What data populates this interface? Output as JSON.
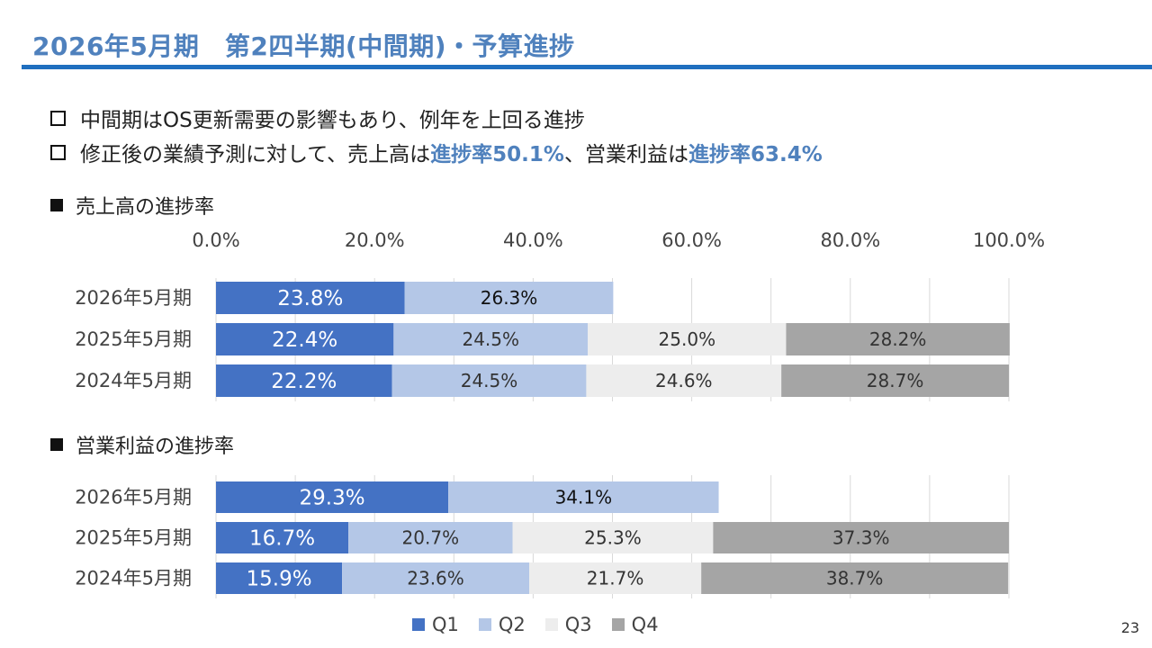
{
  "title": "2026年5月期　第2四半期(中間期)・予算進捗",
  "bullets": [
    {
      "text": "中間期はOS更新需要の影響もあり、例年を上回る進捗"
    },
    {
      "pre": "修正後の業績予測に対して、売上高は",
      "hl1": "進捗率50.1%",
      "mid": "、営業利益は",
      "hl2": "進捗率63.4%"
    }
  ],
  "page_number": "23",
  "colors": {
    "title": "#4f81bd",
    "rule": "#1f6fbf",
    "Q1": "#4472c4",
    "Q2": "#b4c7e7",
    "Q3": "#ededed",
    "Q4": "#a5a5a5"
  },
  "legend": [
    "Q1",
    "Q2",
    "Q3",
    "Q4"
  ],
  "chart_data": [
    {
      "type": "bar",
      "orientation": "horizontal",
      "stacked": true,
      "title": "売上高の進捗率",
      "axis_ticks": [
        "0.0%",
        "20.0%",
        "40.0%",
        "60.0%",
        "80.0%",
        "100.0%"
      ],
      "xlim": [
        0,
        100
      ],
      "categories": [
        "2026年5月期",
        "2025年5月期",
        "2024年5月期"
      ],
      "series": [
        {
          "name": "Q1",
          "values": [
            23.8,
            22.4,
            22.2
          ],
          "labels": [
            "23.8%",
            "22.4%",
            "22.2%"
          ]
        },
        {
          "name": "Q2",
          "values": [
            26.3,
            24.5,
            24.5
          ],
          "labels": [
            "26.3%",
            "24.5%",
            "24.5%"
          ]
        },
        {
          "name": "Q3",
          "values": [
            null,
            25.0,
            24.6
          ],
          "labels": [
            null,
            "25.0%",
            "24.6%"
          ]
        },
        {
          "name": "Q4",
          "values": [
            null,
            28.2,
            28.7
          ],
          "labels": [
            null,
            "28.2%",
            "28.7%"
          ]
        }
      ]
    },
    {
      "type": "bar",
      "orientation": "horizontal",
      "stacked": true,
      "title": "営業利益の進捗率",
      "xlim": [
        0,
        100
      ],
      "categories": [
        "2026年5月期",
        "2025年5月期",
        "2024年5月期"
      ],
      "series": [
        {
          "name": "Q1",
          "values": [
            29.3,
            16.7,
            15.9
          ],
          "labels": [
            "29.3%",
            "16.7%",
            "15.9%"
          ]
        },
        {
          "name": "Q2",
          "values": [
            34.1,
            20.7,
            23.6
          ],
          "labels": [
            "34.1%",
            "20.7%",
            "23.6%"
          ]
        },
        {
          "name": "Q3",
          "values": [
            null,
            25.3,
            21.7
          ],
          "labels": [
            null,
            "25.3%",
            "21.7%"
          ]
        },
        {
          "name": "Q4",
          "values": [
            null,
            37.3,
            38.7
          ],
          "labels": [
            null,
            "37.3%",
            "38.7%"
          ]
        }
      ]
    }
  ]
}
